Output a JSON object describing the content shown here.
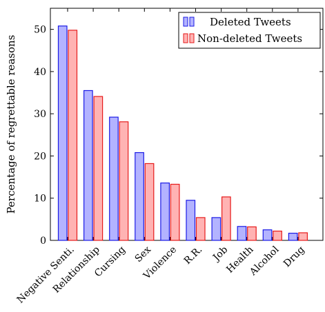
{
  "chart_data": {
    "type": "bar",
    "categories": [
      "Negative Senti.",
      "Relationship",
      "Cursing",
      "Sex",
      "Violence",
      "R.R.",
      "Job",
      "Health",
      "Alcohol",
      "Drug"
    ],
    "series": [
      {
        "name": "Deleted Tweets",
        "values": [
          50.8,
          35.5,
          29.2,
          20.8,
          13.6,
          9.5,
          5.4,
          3.3,
          2.5,
          1.7
        ],
        "fill": "#b3b3ff",
        "stroke": "#1a1ae6"
      },
      {
        "name": "Non-deleted Tweets",
        "values": [
          49.8,
          34.1,
          28.1,
          18.2,
          13.3,
          5.4,
          10.3,
          3.2,
          2.2,
          1.8
        ],
        "fill": "#ffb3b3",
        "stroke": "#e61a1a"
      }
    ],
    "title": "",
    "xlabel": "",
    "ylabel": "Percentage of regrettable reasons",
    "ylim": [
      0,
      55
    ],
    "yticks": [
      0,
      10,
      20,
      30,
      40,
      50
    ],
    "grid": false,
    "legend_position": "top-right"
  }
}
